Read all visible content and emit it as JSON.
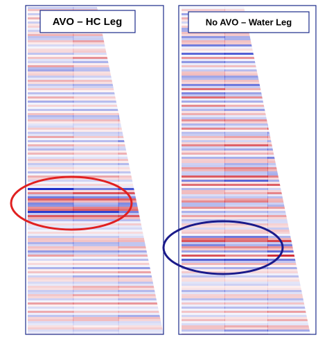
{
  "panels": [
    {
      "label": "AVO – HC Leg"
    },
    {
      "label": "No AVO – Water Leg"
    }
  ]
}
